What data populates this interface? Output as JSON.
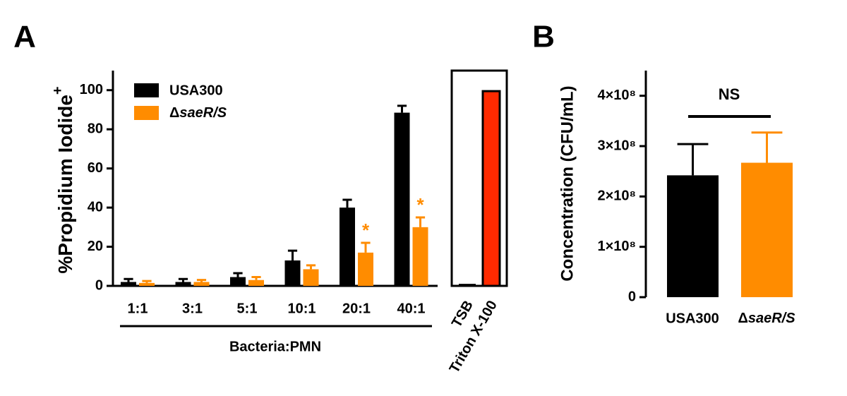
{
  "chart_data": [
    {
      "type": "bar",
      "panel_label": "A",
      "y_label": "%Propidium Iodide",
      "y_label_superscript": "+",
      "x_label": "Bacteria:PMN",
      "categories": [
        "1:1",
        "3:1",
        "5:1",
        "10:1",
        "20:1",
        "40:1"
      ],
      "series": [
        {
          "name": "USA300",
          "color": "#000000",
          "values": [
            2,
            2,
            4.5,
            13,
            40,
            88.5
          ],
          "errors": [
            1.5,
            1.5,
            2,
            5,
            4,
            3.5
          ]
        },
        {
          "name": "ΔsaeR/S",
          "color": "#ff8c00",
          "values": [
            1.5,
            2,
            3,
            8.5,
            17,
            30
          ],
          "errors": [
            1,
            1,
            1.5,
            2,
            5,
            5
          ],
          "significance": [
            null,
            null,
            null,
            null,
            "*",
            "*"
          ]
        }
      ],
      "ylim": [
        0,
        110
      ],
      "yticks": [
        0,
        20,
        40,
        60,
        80,
        100
      ],
      "legend": "top-left"
    },
    {
      "type": "bar",
      "categories": [
        "TSB",
        "Triton X-100"
      ],
      "values": [
        0.5,
        99.5
      ],
      "colors": [
        "#000000",
        "#ff2a00"
      ],
      "ylim": [
        0,
        110
      ]
    },
    {
      "type": "bar",
      "panel_label": "B",
      "y_label": "Concentration (CFU/mL)",
      "annotation": "NS",
      "categories": [
        "USA300",
        "ΔsaeR/S"
      ],
      "values": [
        242000000,
        267000000
      ],
      "errors": [
        62000000,
        60000000
      ],
      "colors": [
        "#000000",
        "#ff8c00"
      ],
      "ylim": [
        0,
        450000000
      ],
      "yticks": [
        0,
        {
          "value": 100000000,
          "label": "1×10⁸"
        },
        {
          "value": 200000000,
          "label": "2×10⁸"
        },
        {
          "value": 300000000,
          "label": "3×10⁸"
        },
        {
          "value": 400000000,
          "label": "4×10⁸"
        }
      ]
    }
  ]
}
